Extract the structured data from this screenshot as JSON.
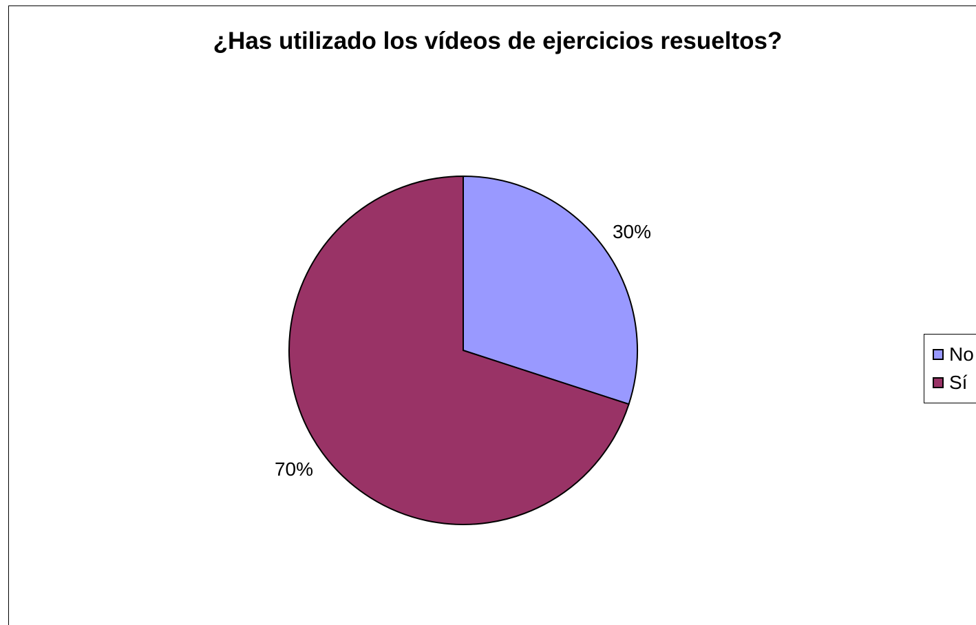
{
  "chart_data": {
    "type": "pie",
    "title": "¿Has utilizado los vídeos de ejercicios resueltos?",
    "categories": [
      "No",
      "Sí"
    ],
    "values": [
      30,
      70
    ],
    "data_labels": [
      "30%",
      "70%"
    ],
    "colors": [
      "#9999ff",
      "#993366"
    ],
    "legend_position": "right",
    "legend": [
      {
        "label": "No",
        "color": "#9999ff"
      },
      {
        "label": "Sí",
        "color": "#993366"
      }
    ]
  }
}
